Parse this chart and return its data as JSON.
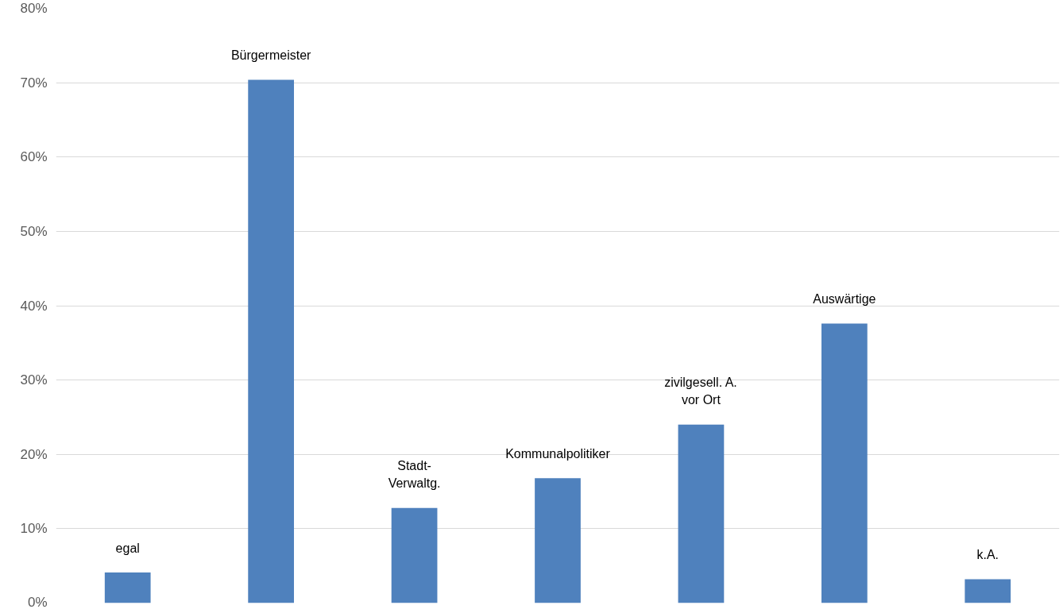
{
  "chart_data": {
    "type": "bar",
    "categories": [
      "egal",
      "Bürgermeister",
      "Stadt-\nVerwaltg.",
      "Kommunalpolitiker",
      "zivilgesell. A.\nvor Ort",
      "Auswärtige",
      "k.A."
    ],
    "values": [
      4.1,
      70.4,
      12.8,
      16.8,
      24.0,
      37.6,
      3.2
    ],
    "color": "#4f81bd",
    "ylim": [
      0,
      80
    ],
    "yticks": [
      {
        "value": 0,
        "label": "0%"
      },
      {
        "value": 10,
        "label": "10%"
      },
      {
        "value": 20,
        "label": "20%"
      },
      {
        "value": 30,
        "label": "30%"
      },
      {
        "value": 40,
        "label": "40%"
      },
      {
        "value": 50,
        "label": "50%"
      },
      {
        "value": 60,
        "label": "60%"
      },
      {
        "value": 70,
        "label": "70%"
      },
      {
        "value": 80,
        "label": "80%"
      }
    ],
    "grid": "y",
    "tick_labels": "y"
  }
}
